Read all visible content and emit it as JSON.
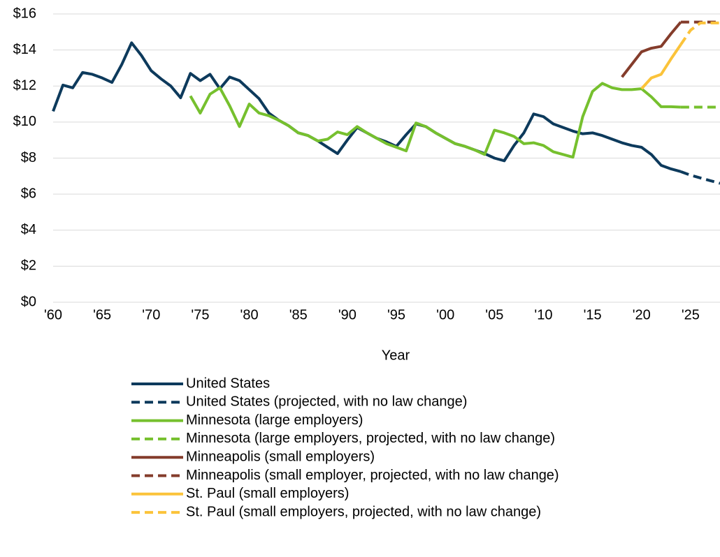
{
  "chart_data": {
    "type": "line",
    "x_label": "Year",
    "x": [
      1960,
      1961,
      1962,
      1963,
      1964,
      1965,
      1966,
      1967,
      1968,
      1969,
      1970,
      1971,
      1972,
      1973,
      1974,
      1975,
      1976,
      1977,
      1978,
      1979,
      1980,
      1981,
      1982,
      1983,
      1984,
      1985,
      1986,
      1987,
      1988,
      1989,
      1990,
      1991,
      1992,
      1993,
      1994,
      1995,
      1996,
      1997,
      1998,
      1999,
      2000,
      2001,
      2002,
      2003,
      2004,
      2005,
      2006,
      2007,
      2008,
      2009,
      2010,
      2011,
      2012,
      2013,
      2014,
      2015,
      2016,
      2017,
      2018,
      2019,
      2020,
      2021,
      2022,
      2023,
      2024,
      2025,
      2026,
      2027,
      2028
    ],
    "xlim": [
      1960,
      2028
    ],
    "xticks": [
      {
        "value": 1960,
        "label": "'60"
      },
      {
        "value": 1965,
        "label": "'65"
      },
      {
        "value": 1970,
        "label": "'70"
      },
      {
        "value": 1975,
        "label": "'75"
      },
      {
        "value": 1980,
        "label": "'80"
      },
      {
        "value": 1985,
        "label": "'85"
      },
      {
        "value": 1990,
        "label": "'90"
      },
      {
        "value": 1995,
        "label": "'95"
      },
      {
        "value": 2000,
        "label": "'00"
      },
      {
        "value": 2005,
        "label": "'05"
      },
      {
        "value": 2010,
        "label": "'10"
      },
      {
        "value": 2015,
        "label": "'15"
      },
      {
        "value": 2020,
        "label": "'20"
      },
      {
        "value": 2025,
        "label": "'25"
      }
    ],
    "ylim": [
      0,
      16
    ],
    "yticks": [
      {
        "value": 0,
        "label": "$0"
      },
      {
        "value": 2,
        "label": "$2"
      },
      {
        "value": 4,
        "label": "$4"
      },
      {
        "value": 6,
        "label": "$6"
      },
      {
        "value": 8,
        "label": "$8"
      },
      {
        "value": 10,
        "label": "$10"
      },
      {
        "value": 12,
        "label": "$12"
      },
      {
        "value": 14,
        "label": "$14"
      },
      {
        "value": 16,
        "label": "$16"
      }
    ],
    "grid": true,
    "series": [
      {
        "name": "United States",
        "color": "#0d3a5c",
        "line_style": "solid",
        "values": [
          10.6,
          12.05,
          11.9,
          12.75,
          12.65,
          12.45,
          12.2,
          13.2,
          14.4,
          13.7,
          12.85,
          12.4,
          12.0,
          11.35,
          12.7,
          12.3,
          12.65,
          11.85,
          12.5,
          12.3,
          11.8,
          11.3,
          10.5,
          10.1,
          9.8,
          9.4,
          9.25,
          8.95,
          8.6,
          8.25,
          9.0,
          9.7,
          9.4,
          9.1,
          8.9,
          8.65,
          9.3,
          9.9,
          9.75,
          9.4,
          9.1,
          8.8,
          8.65,
          8.45,
          8.25,
          8.0,
          7.85,
          8.7,
          9.4,
          10.45,
          10.3,
          9.9,
          9.7,
          9.5,
          9.35,
          9.4,
          9.25,
          9.05,
          8.85,
          8.7,
          8.6,
          8.2,
          7.6,
          7.4,
          7.25,
          null,
          null,
          null,
          null
        ]
      },
      {
        "name": "United States (projected, with no law change)",
        "color": "#0d3a5c",
        "line_style": "dashed",
        "values": [
          null,
          null,
          null,
          null,
          null,
          null,
          null,
          null,
          null,
          null,
          null,
          null,
          null,
          null,
          null,
          null,
          null,
          null,
          null,
          null,
          null,
          null,
          null,
          null,
          null,
          null,
          null,
          null,
          null,
          null,
          null,
          null,
          null,
          null,
          null,
          null,
          null,
          null,
          null,
          null,
          null,
          null,
          null,
          null,
          null,
          null,
          null,
          null,
          null,
          null,
          null,
          null,
          null,
          null,
          null,
          null,
          null,
          null,
          null,
          null,
          null,
          null,
          null,
          null,
          7.25,
          7.05,
          6.9,
          6.75,
          6.6
        ]
      },
      {
        "name": "Minnesota (large employers)",
        "color": "#76c02e",
        "line_style": "solid",
        "values": [
          null,
          null,
          null,
          null,
          null,
          null,
          null,
          null,
          null,
          null,
          null,
          null,
          null,
          null,
          11.45,
          10.5,
          11.55,
          11.9,
          10.9,
          9.75,
          11.0,
          10.5,
          10.35,
          10.1,
          9.8,
          9.4,
          9.25,
          8.95,
          9.05,
          9.45,
          9.3,
          9.75,
          9.4,
          9.1,
          8.8,
          8.6,
          8.4,
          9.95,
          9.75,
          9.4,
          9.1,
          8.8,
          8.65,
          8.45,
          8.2,
          9.55,
          9.4,
          9.2,
          8.8,
          8.85,
          8.7,
          8.35,
          8.2,
          8.05,
          10.3,
          11.7,
          12.15,
          11.9,
          11.8,
          11.8,
          11.85,
          11.4,
          10.85,
          10.85,
          10.83,
          null,
          null,
          null,
          null
        ]
      },
      {
        "name": "Minnesota (large employers, projected, with no law change)",
        "color": "#76c02e",
        "line_style": "dashed",
        "values": [
          null,
          null,
          null,
          null,
          null,
          null,
          null,
          null,
          null,
          null,
          null,
          null,
          null,
          null,
          null,
          null,
          null,
          null,
          null,
          null,
          null,
          null,
          null,
          null,
          null,
          null,
          null,
          null,
          null,
          null,
          null,
          null,
          null,
          null,
          null,
          null,
          null,
          null,
          null,
          null,
          null,
          null,
          null,
          null,
          null,
          null,
          null,
          null,
          null,
          null,
          null,
          null,
          null,
          null,
          null,
          null,
          null,
          null,
          null,
          null,
          null,
          null,
          null,
          null,
          10.83,
          10.83,
          10.83,
          10.83,
          10.83
        ]
      },
      {
        "name": "Minneapolis (small employers)",
        "color": "#843c2b",
        "line_style": "solid",
        "values": [
          null,
          null,
          null,
          null,
          null,
          null,
          null,
          null,
          null,
          null,
          null,
          null,
          null,
          null,
          null,
          null,
          null,
          null,
          null,
          null,
          null,
          null,
          null,
          null,
          null,
          null,
          null,
          null,
          null,
          null,
          null,
          null,
          null,
          null,
          null,
          null,
          null,
          null,
          null,
          null,
          null,
          null,
          null,
          null,
          null,
          null,
          null,
          null,
          null,
          null,
          null,
          null,
          null,
          null,
          null,
          null,
          null,
          null,
          12.5,
          13.2,
          13.9,
          14.1,
          14.2,
          14.9,
          15.55,
          null,
          null,
          null,
          null
        ]
      },
      {
        "name": "Minneapolis (small employer, projected, with no law change)",
        "color": "#843c2b",
        "line_style": "dashed",
        "values": [
          null,
          null,
          null,
          null,
          null,
          null,
          null,
          null,
          null,
          null,
          null,
          null,
          null,
          null,
          null,
          null,
          null,
          null,
          null,
          null,
          null,
          null,
          null,
          null,
          null,
          null,
          null,
          null,
          null,
          null,
          null,
          null,
          null,
          null,
          null,
          null,
          null,
          null,
          null,
          null,
          null,
          null,
          null,
          null,
          null,
          null,
          null,
          null,
          null,
          null,
          null,
          null,
          null,
          null,
          null,
          null,
          null,
          null,
          null,
          null,
          null,
          null,
          null,
          null,
          15.55,
          15.55,
          15.55,
          15.55,
          15.55
        ]
      },
      {
        "name": "St. Paul (small employers)",
        "color": "#fbc33a",
        "line_style": "solid",
        "values": [
          null,
          null,
          null,
          null,
          null,
          null,
          null,
          null,
          null,
          null,
          null,
          null,
          null,
          null,
          null,
          null,
          null,
          null,
          null,
          null,
          null,
          null,
          null,
          null,
          null,
          null,
          null,
          null,
          null,
          null,
          null,
          null,
          null,
          null,
          null,
          null,
          null,
          null,
          null,
          null,
          null,
          null,
          null,
          null,
          null,
          null,
          null,
          null,
          null,
          null,
          null,
          null,
          null,
          null,
          null,
          null,
          null,
          null,
          null,
          null,
          11.85,
          12.45,
          12.65,
          13.5,
          14.3,
          null,
          null,
          null,
          null
        ]
      },
      {
        "name": "St. Paul (small employers, projected, with no law change)",
        "color": "#fbc33a",
        "line_style": "dashed",
        "values": [
          null,
          null,
          null,
          null,
          null,
          null,
          null,
          null,
          null,
          null,
          null,
          null,
          null,
          null,
          null,
          null,
          null,
          null,
          null,
          null,
          null,
          null,
          null,
          null,
          null,
          null,
          null,
          null,
          null,
          null,
          null,
          null,
          null,
          null,
          null,
          null,
          null,
          null,
          null,
          null,
          null,
          null,
          null,
          null,
          null,
          null,
          null,
          null,
          null,
          null,
          null,
          null,
          null,
          null,
          null,
          null,
          null,
          null,
          null,
          null,
          null,
          null,
          null,
          null,
          14.3,
          15.1,
          15.5,
          15.5,
          15.5
        ]
      }
    ]
  }
}
